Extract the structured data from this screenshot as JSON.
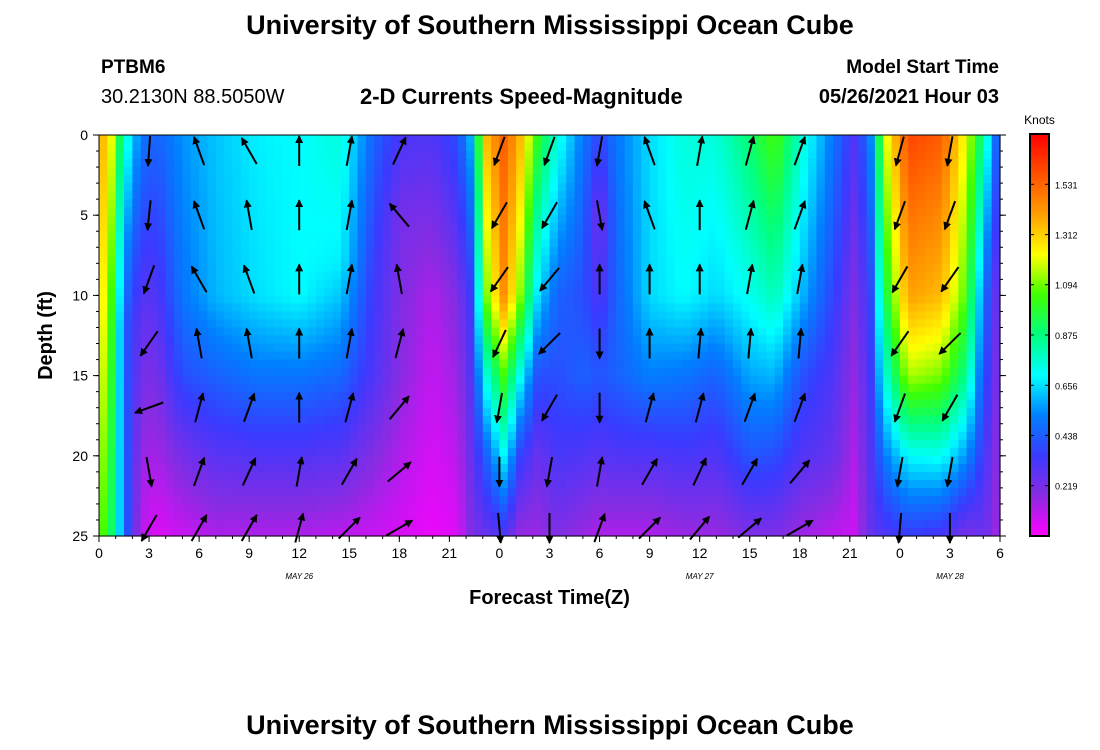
{
  "header": {
    "title": "University of Southern Mississippi Ocean Cube",
    "station_id": "PTBM6",
    "station_coords": "30.2130N  88.5050W",
    "subtitle": "2-D Currents Speed-Magnitude",
    "model_start_label": "Model Start Time",
    "model_start_value": "05/26/2021 Hour 03"
  },
  "footer": {
    "title": "University of Southern Mississippi Ocean Cube"
  },
  "chart_data": {
    "type": "heatmap",
    "title": "2-D Currents Speed-Magnitude",
    "xlabel": "Forecast Time(Z)",
    "ylabel": "Depth (ft)",
    "x_range_hours": [
      0,
      54
    ],
    "x_tick_hours": [
      0,
      3,
      6,
      9,
      12,
      15,
      18,
      21,
      24,
      27,
      30,
      33,
      36,
      39,
      42,
      45,
      48,
      51,
      54
    ],
    "x_tick_labels": [
      "0",
      "3",
      "6",
      "9",
      "12",
      "15",
      "18",
      "21",
      "0",
      "3",
      "6",
      "9",
      "12",
      "15",
      "18",
      "21",
      "0",
      "3",
      "6"
    ],
    "date_labels": [
      {
        "hour": 12,
        "text": "MAY 26"
      },
      {
        "hour": 36,
        "text": "MAY 27"
      },
      {
        "hour": 51,
        "text": "MAY 28"
      }
    ],
    "y_range_ft": [
      0,
      25
    ],
    "y_inverted": true,
    "y_tick_values": [
      0,
      5,
      10,
      15,
      20,
      25
    ],
    "colorbar": {
      "unit": "Knots",
      "range": [
        0,
        1.75
      ],
      "tick_values": [
        0.219,
        0.438,
        0.656,
        0.875,
        1.094,
        1.312,
        1.531
      ],
      "tick_labels": [
        "0.219",
        "0.438",
        "0.656",
        "0.875",
        "1.094",
        "1.312",
        "1.531"
      ],
      "colors": [
        "#ff00ff",
        "#8a2be2",
        "#3a3aff",
        "#0080ff",
        "#00ffff",
        "#00ff80",
        "#40ff00",
        "#ffff00",
        "#ffa000",
        "#ff5000",
        "#ff0000"
      ]
    },
    "time_columns": [
      {
        "hour": 0.5,
        "profile": [
          [
            0,
            1.35
          ],
          [
            25,
            1.05
          ]
        ]
      },
      {
        "hour": 1.5,
        "profile": [
          [
            0,
            0.8
          ],
          [
            6,
            0.6
          ],
          [
            12,
            0.45
          ],
          [
            25,
            0.5
          ]
        ]
      },
      {
        "hour": 2.5,
        "profile": [
          [
            0,
            0.5
          ],
          [
            12,
            0.25
          ],
          [
            25,
            0.1
          ]
        ]
      },
      {
        "hour": 3.5,
        "profile": [
          [
            0,
            0.45
          ],
          [
            10,
            0.3
          ],
          [
            25,
            0.05
          ]
        ]
      },
      {
        "hour": 5,
        "profile": [
          [
            0,
            0.55
          ],
          [
            10,
            0.5
          ],
          [
            15,
            0.4
          ],
          [
            20,
            0.22
          ],
          [
            25,
            0.08
          ]
        ]
      },
      {
        "hour": 7,
        "profile": [
          [
            0,
            0.62
          ],
          [
            10,
            0.6
          ],
          [
            15,
            0.45
          ],
          [
            20,
            0.28
          ],
          [
            25,
            0.12
          ]
        ]
      },
      {
        "hour": 9.5,
        "profile": [
          [
            0,
            0.68
          ],
          [
            10,
            0.66
          ],
          [
            15,
            0.5
          ],
          [
            20,
            0.3
          ],
          [
            25,
            0.12
          ]
        ]
      },
      {
        "hour": 12,
        "profile": [
          [
            0,
            0.7
          ],
          [
            10,
            0.7
          ],
          [
            15,
            0.5
          ],
          [
            20,
            0.3
          ],
          [
            25,
            0.12
          ]
        ]
      },
      {
        "hour": 14.5,
        "profile": [
          [
            0,
            0.75
          ],
          [
            8,
            0.68
          ],
          [
            14,
            0.5
          ],
          [
            20,
            0.28
          ],
          [
            25,
            0.1
          ]
        ]
      },
      {
        "hour": 16.5,
        "profile": [
          [
            0,
            0.45
          ],
          [
            8,
            0.35
          ],
          [
            15,
            0.3
          ],
          [
            25,
            0.08
          ]
        ]
      },
      {
        "hour": 18,
        "profile": [
          [
            0,
            0.32
          ],
          [
            5,
            0.22
          ],
          [
            15,
            0.18
          ],
          [
            25,
            0.06
          ]
        ]
      },
      {
        "hour": 20,
        "profile": [
          [
            0,
            0.3
          ],
          [
            10,
            0.12
          ],
          [
            25,
            0.03
          ]
        ]
      },
      {
        "hour": 21.5,
        "profile": [
          [
            0,
            0.4
          ],
          [
            10,
            0.2
          ],
          [
            25,
            0.05
          ]
        ]
      },
      {
        "hour": 22.3,
        "profile": [
          [
            0,
            0.6
          ],
          [
            10,
            0.35
          ],
          [
            25,
            0.2
          ]
        ]
      },
      {
        "hour": 23.2,
        "profile": [
          [
            0,
            1.35
          ],
          [
            10,
            1.1
          ],
          [
            15,
            0.75
          ],
          [
            20,
            0.45
          ],
          [
            25,
            0.25
          ]
        ]
      },
      {
        "hour": 24.3,
        "profile": [
          [
            0,
            1.55
          ],
          [
            10,
            1.45
          ],
          [
            15,
            1.05
          ],
          [
            20,
            0.7
          ],
          [
            25,
            0.3
          ]
        ]
      },
      {
        "hour": 25.3,
        "profile": [
          [
            0,
            1.35
          ],
          [
            10,
            1.1
          ],
          [
            15,
            0.7
          ],
          [
            20,
            0.35
          ],
          [
            25,
            0.15
          ]
        ]
      },
      {
        "hour": 26.3,
        "profile": [
          [
            0,
            1.0
          ],
          [
            10,
            0.65
          ],
          [
            15,
            0.4
          ],
          [
            20,
            0.25
          ],
          [
            25,
            0.15
          ]
        ]
      },
      {
        "hour": 27.5,
        "profile": [
          [
            0,
            0.75
          ],
          [
            10,
            0.45
          ],
          [
            15,
            0.4
          ],
          [
            20,
            0.32
          ],
          [
            25,
            0.2
          ]
        ]
      },
      {
        "hour": 29,
        "profile": [
          [
            0,
            0.5
          ],
          [
            10,
            0.4
          ],
          [
            15,
            0.45
          ],
          [
            20,
            0.3
          ],
          [
            25,
            0.15
          ]
        ]
      },
      {
        "hour": 30,
        "profile": [
          [
            0,
            0.38
          ],
          [
            5,
            0.22
          ],
          [
            9,
            0.28
          ],
          [
            15,
            0.42
          ],
          [
            20,
            0.28
          ],
          [
            25,
            0.12
          ]
        ]
      },
      {
        "hour": 31,
        "profile": [
          [
            0,
            0.5
          ],
          [
            10,
            0.45
          ],
          [
            15,
            0.45
          ],
          [
            20,
            0.3
          ],
          [
            25,
            0.12
          ]
        ]
      },
      {
        "hour": 33,
        "profile": [
          [
            0,
            0.65
          ],
          [
            10,
            0.65
          ],
          [
            15,
            0.52
          ],
          [
            20,
            0.3
          ],
          [
            25,
            0.12
          ]
        ]
      },
      {
        "hour": 35,
        "profile": [
          [
            0,
            0.75
          ],
          [
            10,
            0.7
          ],
          [
            15,
            0.5
          ],
          [
            20,
            0.32
          ],
          [
            25,
            0.15
          ]
        ]
      },
      {
        "hour": 37,
        "profile": [
          [
            0,
            0.75
          ],
          [
            10,
            0.65
          ],
          [
            15,
            0.45
          ],
          [
            20,
            0.3
          ],
          [
            25,
            0.15
          ]
        ]
      },
      {
        "hour": 39,
        "profile": [
          [
            0,
            0.9
          ],
          [
            10,
            0.72
          ],
          [
            15,
            0.58
          ],
          [
            20,
            0.42
          ],
          [
            25,
            0.2
          ]
        ]
      },
      {
        "hour": 40.5,
        "profile": [
          [
            0,
            1.05
          ],
          [
            10,
            0.8
          ],
          [
            15,
            0.6
          ],
          [
            20,
            0.4
          ],
          [
            25,
            0.2
          ]
        ]
      },
      {
        "hour": 42,
        "profile": [
          [
            0,
            0.78
          ],
          [
            10,
            0.62
          ],
          [
            15,
            0.42
          ],
          [
            20,
            0.3
          ],
          [
            25,
            0.15
          ]
        ]
      },
      {
        "hour": 44,
        "profile": [
          [
            0,
            0.5
          ],
          [
            8,
            0.4
          ],
          [
            15,
            0.3
          ],
          [
            20,
            0.25
          ],
          [
            25,
            0.1
          ]
        ]
      },
      {
        "hour": 45.3,
        "profile": [
          [
            0,
            0.3
          ],
          [
            10,
            0.2
          ],
          [
            25,
            0.08
          ]
        ]
      },
      {
        "hour": 46.2,
        "profile": [
          [
            0,
            0.5
          ],
          [
            10,
            0.35
          ],
          [
            25,
            0.25
          ]
        ]
      },
      {
        "hour": 47,
        "profile": [
          [
            0,
            1.15
          ],
          [
            10,
            0.9
          ],
          [
            15,
            0.72
          ],
          [
            20,
            0.5
          ],
          [
            25,
            0.3
          ]
        ]
      },
      {
        "hour": 48.5,
        "profile": [
          [
            0,
            1.6
          ],
          [
            10,
            1.4
          ],
          [
            15,
            1.15
          ],
          [
            20,
            0.7
          ],
          [
            25,
            0.35
          ]
        ]
      },
      {
        "hour": 50.5,
        "profile": [
          [
            0,
            1.55
          ],
          [
            10,
            1.35
          ],
          [
            15,
            1.1
          ],
          [
            20,
            0.72
          ],
          [
            25,
            0.32
          ]
        ]
      },
      {
        "hour": 52,
        "profile": [
          [
            0,
            1.2
          ],
          [
            10,
            1.05
          ],
          [
            15,
            0.85
          ],
          [
            20,
            0.55
          ],
          [
            25,
            0.2
          ]
        ]
      },
      {
        "hour": 53,
        "profile": [
          [
            0,
            0.85
          ],
          [
            10,
            0.5
          ],
          [
            25,
            0.25
          ]
        ]
      },
      {
        "hour": 53.8,
        "profile": [
          [
            0,
            0.45
          ],
          [
            10,
            0.25
          ],
          [
            25,
            0.15
          ]
        ]
      }
    ],
    "vector_depths_ft": [
      1,
      5,
      9,
      13,
      17,
      21,
      24.5
    ],
    "vector_columns": [
      {
        "hour": 3,
        "directions_deg": [
          184,
          186,
          200,
          215,
          250,
          170,
          210
        ]
      },
      {
        "hour": 6,
        "directions_deg": [
          340,
          340,
          330,
          350,
          15,
          20,
          30
        ]
      },
      {
        "hour": 9,
        "directions_deg": [
          330,
          350,
          340,
          350,
          20,
          25,
          30
        ]
      },
      {
        "hour": 12,
        "directions_deg": [
          0,
          0,
          0,
          0,
          0,
          10,
          15
        ]
      },
      {
        "hour": 15,
        "directions_deg": [
          10,
          10,
          10,
          10,
          15,
          30,
          45
        ]
      },
      {
        "hour": 18,
        "directions_deg": [
          25,
          320,
          350,
          15,
          40,
          50,
          60
        ]
      },
      {
        "hour": 24,
        "directions_deg": [
          200,
          210,
          215,
          205,
          190,
          180,
          175
        ]
      },
      {
        "hour": 27,
        "directions_deg": [
          200,
          210,
          220,
          225,
          210,
          190,
          180
        ]
      },
      {
        "hour": 30,
        "directions_deg": [
          190,
          170,
          0,
          180,
          180,
          10,
          20
        ]
      },
      {
        "hour": 33,
        "directions_deg": [
          340,
          340,
          0,
          0,
          15,
          30,
          45
        ]
      },
      {
        "hour": 36,
        "directions_deg": [
          10,
          0,
          0,
          5,
          15,
          25,
          40
        ]
      },
      {
        "hour": 39,
        "directions_deg": [
          15,
          15,
          10,
          5,
          20,
          30,
          50
        ]
      },
      {
        "hour": 42,
        "directions_deg": [
          20,
          20,
          10,
          5,
          20,
          40,
          60
        ]
      },
      {
        "hour": 48,
        "directions_deg": [
          195,
          200,
          210,
          215,
          200,
          190,
          185
        ]
      },
      {
        "hour": 51,
        "directions_deg": [
          190,
          200,
          215,
          225,
          210,
          190,
          180
        ]
      }
    ]
  }
}
